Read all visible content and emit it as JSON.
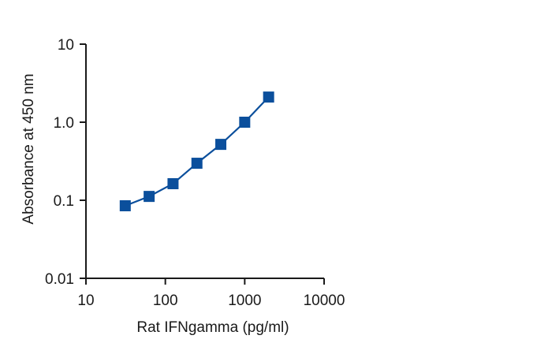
{
  "chart_data": {
    "type": "line",
    "title": "",
    "xlabel": "Rat IFNgamma (pg/ml)",
    "ylabel": "Absorbance at 450 nm",
    "x_scale": "log",
    "y_scale": "log",
    "xlim": [
      10,
      10000
    ],
    "ylim": [
      0.01,
      10
    ],
    "x_ticks": [
      10,
      100,
      1000,
      10000
    ],
    "x_tick_labels": [
      "10",
      "100",
      "1000",
      "10000"
    ],
    "y_ticks": [
      0.01,
      0.1,
      1.0,
      10
    ],
    "y_tick_labels": [
      "0.01",
      "0.1",
      "1.0",
      "10"
    ],
    "grid": false,
    "legend": "none",
    "series": [
      {
        "color": "#0b4f9c",
        "marker": "square",
        "x": [
          31.25,
          62.5,
          125,
          250,
          500,
          1000,
          2000
        ],
        "y": [
          0.085,
          0.112,
          0.163,
          0.298,
          0.52,
          1.0,
          2.1
        ]
      }
    ]
  }
}
